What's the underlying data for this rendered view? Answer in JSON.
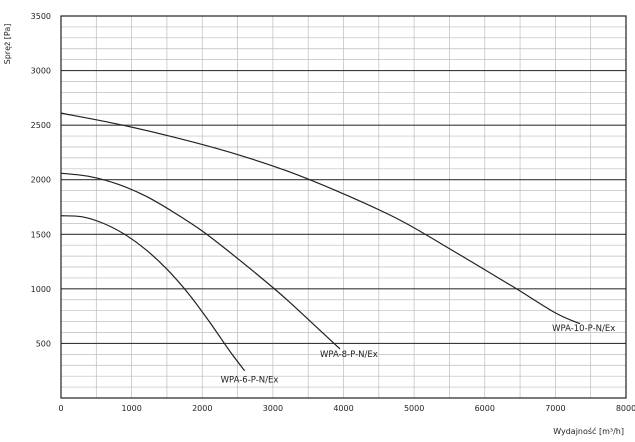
{
  "chart_data": {
    "type": "line",
    "xlabel": "Wydajność [m³/h]",
    "ylabel": "Spręż [Pa]",
    "xlim": [
      0,
      8000
    ],
    "ylim": [
      0,
      3500
    ],
    "xticks": [
      0,
      1000,
      2000,
      3000,
      4000,
      5000,
      6000,
      7000,
      8000
    ],
    "yticks": [
      500,
      1000,
      1500,
      2000,
      2500,
      3000,
      3500
    ],
    "minor_ystep": 100,
    "minor_xstep": 500,
    "grid": true,
    "series": [
      {
        "name": "WPA-6-P-N/Ex",
        "color": "#222222",
        "x": [
          0,
          300,
          600,
          900,
          1200,
          1500,
          1800,
          2100,
          2400,
          2600
        ],
        "y": [
          1670,
          1660,
          1600,
          1500,
          1360,
          1180,
          960,
          700,
          420,
          250
        ]
      },
      {
        "name": "WPA-8-P-N/Ex",
        "color": "#222222",
        "x": [
          0,
          400,
          800,
          1200,
          1600,
          2000,
          2400,
          2800,
          3200,
          3600,
          3950
        ],
        "y": [
          2060,
          2030,
          1960,
          1850,
          1700,
          1530,
          1330,
          1120,
          900,
          660,
          450
        ]
      },
      {
        "name": "WPA-10-P-N/Ex",
        "color": "#222222",
        "x": [
          0,
          800,
          1600,
          2400,
          3200,
          4000,
          4800,
          5600,
          6400,
          7000,
          7350
        ],
        "y": [
          2610,
          2510,
          2390,
          2250,
          2080,
          1870,
          1630,
          1330,
          1020,
          780,
          680
        ]
      }
    ]
  }
}
